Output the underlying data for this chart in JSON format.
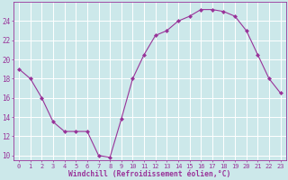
{
  "x": [
    0,
    1,
    2,
    3,
    4,
    5,
    6,
    7,
    8,
    9,
    10,
    11,
    12,
    13,
    14,
    15,
    16,
    17,
    18,
    19,
    20,
    21,
    22,
    23
  ],
  "y": [
    19,
    18,
    16,
    13.5,
    12.5,
    12.5,
    12.5,
    10,
    9.8,
    13.8,
    18,
    20.5,
    22.5,
    23,
    24,
    24.5,
    25.2,
    25.2,
    25,
    24.5,
    23,
    20.5,
    18,
    16.5
  ],
  "line_color": "#993399",
  "marker": "D",
  "marker_size": 2,
  "bg_color": "#cce8ea",
  "grid_color": "#b0d8dc",
  "xlabel": "Windchill (Refroidissement éolien,°C)",
  "xlabel_color": "#993399",
  "tick_color": "#993399",
  "ylabel_ticks": [
    10,
    12,
    14,
    16,
    18,
    20,
    22,
    24
  ],
  "ylim": [
    9.5,
    26.0
  ],
  "xlim": [
    -0.5,
    23.5
  ],
  "xtick_labels": [
    "0",
    "1",
    "2",
    "3",
    "4",
    "5",
    "6",
    "7",
    "8",
    "9",
    "10",
    "11",
    "12",
    "13",
    "14",
    "15",
    "16",
    "17",
    "18",
    "19",
    "20",
    "21",
    "22",
    "23"
  ]
}
